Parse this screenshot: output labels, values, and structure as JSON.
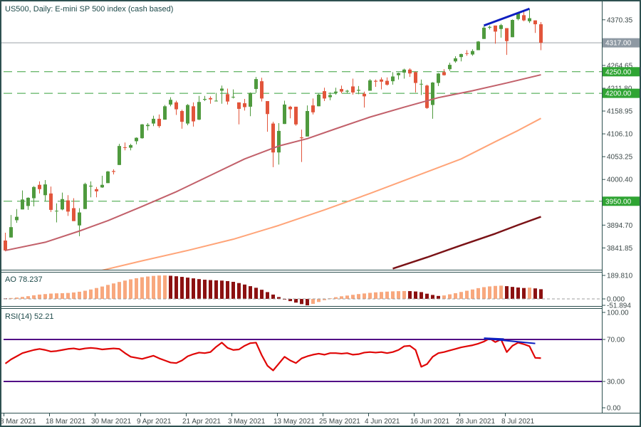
{
  "colors": {
    "frame": "#2e5050",
    "title_text": "#1c4949",
    "axis_text": "#3e4a4a",
    "candle_up": "#4f9a3e",
    "candle_down": "#e2553b",
    "ma50": "#c2606a",
    "ma100": "#ffa478",
    "ma200": "#7a1216",
    "level_line": "#38a03c",
    "level_box": "#2fa433",
    "current_line": "#9aa0a8",
    "current_box": "#8e99a3",
    "ao_up": "#f8a87e",
    "ao_down": "#8c1111",
    "ao_zero": "#9e9e9e",
    "rsi_line": "#e00505",
    "rsi_level": "#520c86",
    "trend_blue": "#0d1ec0",
    "box_text": "#ffffff"
  },
  "chart_data": [
    {
      "type": "candlestick",
      "title": "US500, Daily:  E-mini SP 500 index (cash based)",
      "symbol": "US500",
      "timeframe": "Daily",
      "ylim": [
        3793,
        4403
      ],
      "y_ticks": [
        {
          "label": "4370.35",
          "value": 4370.35
        },
        {
          "label": "4264.65",
          "value": 4264.65
        },
        {
          "label": "4211.80",
          "value": 4211.8
        },
        {
          "label": "4158.95",
          "value": 4158.95
        },
        {
          "label": "4106.10",
          "value": 4106.1
        },
        {
          "label": "4053.25",
          "value": 4053.25
        },
        {
          "label": "4000.40",
          "value": 4000.4
        },
        {
          "label": "3894.70",
          "value": 3894.7
        },
        {
          "label": "3841.85",
          "value": 3841.85
        }
      ],
      "levels": [
        {
          "label": "4250.00",
          "value": 4250
        },
        {
          "label": "4200.00",
          "value": 4200
        },
        {
          "label": "3950.00",
          "value": 3950
        }
      ],
      "current_price": {
        "label": "4317.00",
        "value": 4317
      },
      "x_ticks": [
        {
          "label": "8 Mar 2021",
          "i": 0
        },
        {
          "label": "18 Mar 2021",
          "i": 8
        },
        {
          "label": "30 Mar 2021",
          "i": 16
        },
        {
          "label": "9 Apr 2021",
          "i": 24
        },
        {
          "label": "21 Apr 2021",
          "i": 32
        },
        {
          "label": "3 May 2021",
          "i": 40
        },
        {
          "label": "13 May 2021",
          "i": 48
        },
        {
          "label": "25 May 2021",
          "i": 56
        },
        {
          "label": "4 Jun 2021",
          "i": 64
        },
        {
          "label": "16 Jun 2021",
          "i": 72
        },
        {
          "label": "28 Jun 2021",
          "i": 80
        },
        {
          "label": "8 Jul 2021",
          "i": 88
        }
      ],
      "ohlc": [
        [
          3859,
          3877,
          3834,
          3836
        ],
        [
          3866,
          3918,
          3866,
          3890
        ],
        [
          3906,
          3932,
          3900,
          3914
        ],
        [
          3931,
          3975,
          3931,
          3954
        ],
        [
          3939,
          3959,
          3930,
          3958
        ],
        [
          3957,
          3985,
          3938,
          3983
        ],
        [
          3988,
          3996,
          3968,
          3978
        ],
        [
          3964,
          3999,
          3950,
          3989
        ],
        [
          3968,
          3984,
          3925,
          3930
        ],
        [
          3928,
          3945,
          3901,
          3928
        ],
        [
          3931,
          3970,
          3929,
          3955
        ],
        [
          3952,
          3964,
          3916,
          3926
        ],
        [
          3934,
          3957,
          3904,
          3904
        ],
        [
          3894,
          3934,
          3869,
          3924
        ],
        [
          3932,
          3993,
          3932,
          3990
        ],
        [
          3984,
          3996,
          3959,
          3986
        ],
        [
          3978,
          3983,
          3959,
          3973
        ],
        [
          3982,
          4009,
          3981,
          3988
        ],
        [
          3992,
          4020,
          3992,
          4019
        ],
        [
          4020,
          4024,
          4012,
          4018
        ],
        [
          4034,
          4083,
          4034,
          4078
        ],
        [
          4075,
          4086,
          4068,
          4074
        ],
        [
          4074,
          4083,
          4068,
          4080
        ],
        [
          4089,
          4098,
          4082,
          4097
        ],
        [
          4096,
          4129,
          4095,
          4128
        ],
        [
          4124,
          4131,
          4114,
          4127
        ],
        [
          4130,
          4148,
          4124,
          4141
        ],
        [
          4141,
          4151,
          4120,
          4124
        ],
        [
          4139,
          4173,
          4139,
          4170
        ],
        [
          4174,
          4191,
          4170,
          4185
        ],
        [
          4179,
          4183,
          4150,
          4163
        ],
        [
          4159,
          4162,
          4118,
          4134
        ],
        [
          4130,
          4175,
          4126,
          4173
        ],
        [
          4170,
          4179,
          4123,
          4135
        ],
        [
          4139,
          4194,
          4138,
          4180
        ],
        [
          4185,
          4194,
          4182,
          4187
        ],
        [
          4189,
          4193,
          4176,
          4186
        ],
        [
          4183,
          4201,
          4181,
          4183
        ],
        [
          4206,
          4218,
          4176,
          4211
        ],
        [
          4198,
          4211,
          4174,
          4181
        ],
        [
          4191,
          4209,
          4188,
          4192
        ],
        [
          4179,
          4179,
          4128,
          4164
        ],
        [
          4177,
          4187,
          4160,
          4168
        ],
        [
          4169,
          4202,
          4147,
          4201
        ],
        [
          4210,
          4238,
          4201,
          4233
        ],
        [
          4228,
          4236,
          4181,
          4188
        ],
        [
          4182,
          4182,
          4111,
          4152
        ],
        [
          4130,
          4134,
          4029,
          4063
        ],
        [
          4063,
          4131,
          4035,
          4113
        ],
        [
          4129,
          4183,
          4129,
          4174
        ],
        [
          4169,
          4171,
          4142,
          4163
        ],
        [
          4169,
          4169,
          4125,
          4128
        ],
        [
          4098,
          4116,
          4041,
          4096
        ],
        [
          4100,
          4172,
          4100,
          4159
        ],
        [
          4172,
          4188,
          4151,
          4156
        ],
        [
          4170,
          4199,
          4170,
          4197
        ],
        [
          4205,
          4213,
          4182,
          4188
        ],
        [
          4191,
          4202,
          4184,
          4196
        ],
        [
          4201,
          4213,
          4197,
          4204
        ],
        [
          4210,
          4218,
          4200,
          4204
        ],
        [
          4204,
          4208,
          4200,
          4206
        ],
        [
          4216,
          4234,
          4197,
          4202
        ],
        [
          4206,
          4217,
          4198,
          4208
        ],
        [
          4199,
          4204,
          4167,
          4193
        ],
        [
          4206,
          4233,
          4206,
          4230
        ],
        [
          4229,
          4232,
          4215,
          4227
        ],
        [
          4232,
          4237,
          4209,
          4227
        ],
        [
          4229,
          4237,
          4218,
          4220
        ],
        [
          4228,
          4249,
          4220,
          4239
        ],
        [
          4242,
          4248,
          4232,
          4247
        ],
        [
          4248,
          4257,
          4234,
          4255
        ],
        [
          4255,
          4258,
          4238,
          4246
        ],
        [
          4249,
          4251,
          4202,
          4224
        ],
        [
          4221,
          4232,
          4196,
          4222
        ],
        [
          4218,
          4220,
          4164,
          4166
        ],
        [
          4173,
          4226,
          4141,
          4225
        ],
        [
          4224,
          4247,
          4217,
          4246
        ],
        [
          4249,
          4256,
          4241,
          4242
        ],
        [
          4256,
          4271,
          4252,
          4266
        ],
        [
          4274,
          4286,
          4271,
          4281
        ],
        [
          4284,
          4292,
          4274,
          4291
        ],
        [
          4293,
          4300,
          4287,
          4292
        ],
        [
          4290,
          4302,
          4287,
          4298
        ],
        [
          4300,
          4321,
          4300,
          4320
        ],
        [
          4326,
          4356,
          4326,
          4352
        ],
        [
          4352,
          4357,
          4348,
          4354
        ],
        [
          4357,
          4357,
          4315,
          4343
        ],
        [
          4349,
          4361,
          4329,
          4358
        ],
        [
          4351,
          4351,
          4289,
          4321
        ],
        [
          4330,
          4371,
          4330,
          4370
        ],
        [
          4372,
          4386,
          4369,
          4385
        ],
        [
          4381,
          4392,
          4367,
          4369
        ],
        [
          4367,
          4394,
          4363,
          4374
        ],
        [
          4369,
          4369,
          4340,
          4360
        ],
        [
          4360,
          4365,
          4300,
          4317
        ]
      ],
      "moving_averages": [
        {
          "name": "ma-50",
          "color_key": "ma50",
          "width": 2,
          "points": [
            [
              0,
              3836
            ],
            [
              7,
              3855
            ],
            [
              13,
              3881
            ],
            [
              18,
              3905
            ],
            [
              24,
              3938
            ],
            [
              30,
              3972
            ],
            [
              36,
              4010
            ],
            [
              42,
              4048
            ],
            [
              48,
              4078
            ],
            [
              53,
              4095
            ],
            [
              58,
              4118
            ],
            [
              64,
              4145
            ],
            [
              70,
              4168
            ],
            [
              76,
              4190
            ],
            [
              82,
              4206
            ],
            [
              88,
              4224
            ],
            [
              94,
              4243
            ]
          ]
        },
        {
          "name": "ma-100",
          "color_key": "ma100",
          "width": 2,
          "points": [
            [
              17,
              3790
            ],
            [
              24,
              3812
            ],
            [
              32,
              3836
            ],
            [
              40,
              3862
            ],
            [
              48,
              3894
            ],
            [
              56,
              3930
            ],
            [
              64,
              3968
            ],
            [
              72,
              4008
            ],
            [
              80,
              4048
            ],
            [
              86,
              4088
            ],
            [
              90,
              4114
            ],
            [
              94,
              4142
            ]
          ]
        },
        {
          "name": "ma-200",
          "color_key": "ma200",
          "width": 2.5,
          "points": [
            [
              68,
              3794
            ],
            [
              74,
              3820
            ],
            [
              80,
              3848
            ],
            [
              86,
              3875
            ],
            [
              90,
              3895
            ],
            [
              94,
              3914
            ]
          ]
        }
      ],
      "trendline": {
        "from": {
          "i": 84,
          "price": 4357
        },
        "to": {
          "i": 92,
          "price": 4396
        },
        "width": 3
      }
    },
    {
      "type": "bar",
      "name": "AO",
      "label": "AO 78.237",
      "current_value": 78.237,
      "y_labels": [
        {
          "label": "189.810",
          "value": 189.81
        },
        {
          "label": "0.000",
          "value": 0
        },
        {
          "label": "-51.894",
          "value": -51.894
        }
      ],
      "ylim": [
        -52,
        195
      ],
      "values": [
        4,
        7,
        11,
        16,
        22,
        29,
        35,
        39,
        43,
        45,
        46,
        48,
        52,
        58,
        66,
        76,
        88,
        100,
        113,
        125,
        137,
        148,
        158,
        167,
        175,
        181,
        186,
        189,
        189.8,
        187,
        183,
        178,
        172,
        166,
        160,
        155,
        152,
        150,
        148,
        144,
        138,
        128,
        116,
        103,
        90,
        74,
        55,
        35,
        15,
        -5,
        -18,
        -30,
        -42,
        -51.894,
        -40,
        -25,
        -10,
        5,
        14,
        21,
        27,
        33,
        39,
        44,
        49,
        53,
        56,
        59,
        61,
        62.5,
        63.5,
        63,
        60,
        55,
        42,
        32,
        24,
        28,
        37,
        46,
        56,
        66,
        76,
        87,
        95,
        101,
        105,
        107,
        103,
        97,
        92,
        88,
        91,
        85,
        78.237
      ]
    },
    {
      "type": "line",
      "name": "RSI",
      "label": "RSI(14) 52.21",
      "period": 14,
      "current_value": 52.21,
      "y_labels": [
        {
          "label": "100.00",
          "value": 100
        },
        {
          "label": "70.00",
          "value": 70
        },
        {
          "label": "30.00",
          "value": 30
        },
        {
          "label": "0.00",
          "value": 0
        }
      ],
      "levels": [
        70,
        30
      ],
      "ylim": [
        0,
        100
      ],
      "values": [
        47,
        51,
        54,
        57,
        58.5,
        60,
        61,
        60,
        58.5,
        59,
        60,
        61,
        61.5,
        60.5,
        61.5,
        62,
        61.5,
        60.5,
        61,
        61.5,
        61,
        57,
        53.5,
        52.5,
        51.5,
        53,
        54.5,
        52,
        50,
        48,
        47.5,
        50,
        54,
        56,
        57.5,
        57,
        58,
        63,
        67,
        62,
        60,
        60.5,
        64,
        66.5,
        67,
        55,
        45,
        40.5,
        47,
        53.5,
        50,
        47.5,
        52,
        54,
        55.5,
        56.5,
        55.5,
        57,
        57,
        56.5,
        57,
        55.5,
        56,
        57.5,
        58,
        57.5,
        58,
        57,
        58,
        60,
        63.5,
        64,
        60,
        44,
        46.5,
        53.5,
        57,
        58,
        59.5,
        61,
        62.5,
        63.5,
        64.5,
        66,
        68,
        71,
        67.5,
        70,
        58,
        64,
        67,
        65.5,
        63.5,
        52.5,
        52.21
      ],
      "trendlines": [
        {
          "from": {
            "i": 84,
            "value": 70.9
          },
          "to": {
            "i": 87.5,
            "value": 70.1
          },
          "width": 3
        },
        {
          "from": {
            "i": 85,
            "value": 70.4
          },
          "to": {
            "i": 93,
            "value": 66.2
          },
          "width": 2
        }
      ]
    }
  ]
}
